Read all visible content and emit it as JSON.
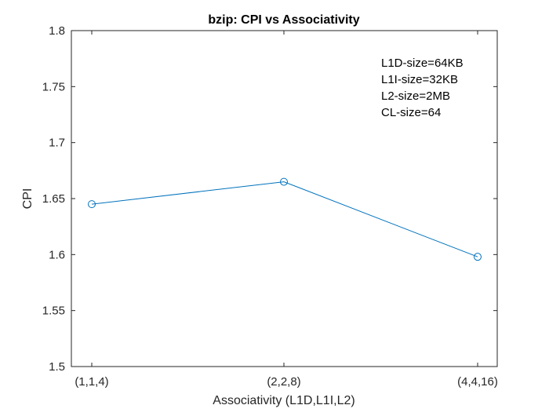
{
  "chart_data": {
    "type": "line",
    "title": "bzip: CPI vs Associativity",
    "xlabel": "Associativity (L1D,L1I,L2)",
    "ylabel": "CPI",
    "categories": [
      "(1,1,4)",
      "(2,2,8)",
      "(4,4,16)"
    ],
    "series": [
      {
        "values": [
          1.645,
          1.665,
          1.598
        ],
        "color": "#0072BD",
        "marker": "circle"
      }
    ],
    "ylim": [
      1.5,
      1.8
    ],
    "yticks": [
      "1.5",
      "1.55",
      "1.6",
      "1.65",
      "1.7",
      "1.75",
      "1.8"
    ],
    "grid": false,
    "annotation": [
      "L1D-size=64KB",
      "L1I-size=32KB",
      "L2-size=2MB",
      "CL-size=64"
    ]
  }
}
